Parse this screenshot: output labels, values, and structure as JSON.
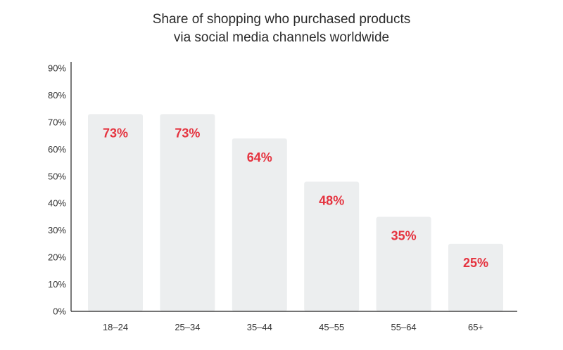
{
  "chart_data": {
    "type": "bar",
    "title_lines": [
      "Share of shopping who purchased products",
      "via social media channels worldwide"
    ],
    "xlabel": "",
    "ylabel": "",
    "categories": [
      "18–24",
      "25–34",
      "35–44",
      "45–55",
      "55–64",
      "65+"
    ],
    "values": [
      73,
      73,
      64,
      48,
      35,
      25
    ],
    "value_labels": [
      "73%",
      "73%",
      "64%",
      "48%",
      "35%",
      "25%"
    ],
    "y_ticks": [
      "0%",
      "10%",
      "20%",
      "30%",
      "40%",
      "50%",
      "60%",
      "70%",
      "80%",
      "90%"
    ],
    "ylim": [
      0,
      90
    ],
    "grid": false,
    "legend": "none",
    "colors": {
      "bar": "#eceeef",
      "data_label": "#e5333f",
      "axis": "#222222",
      "title": "#2b2b2b"
    }
  }
}
